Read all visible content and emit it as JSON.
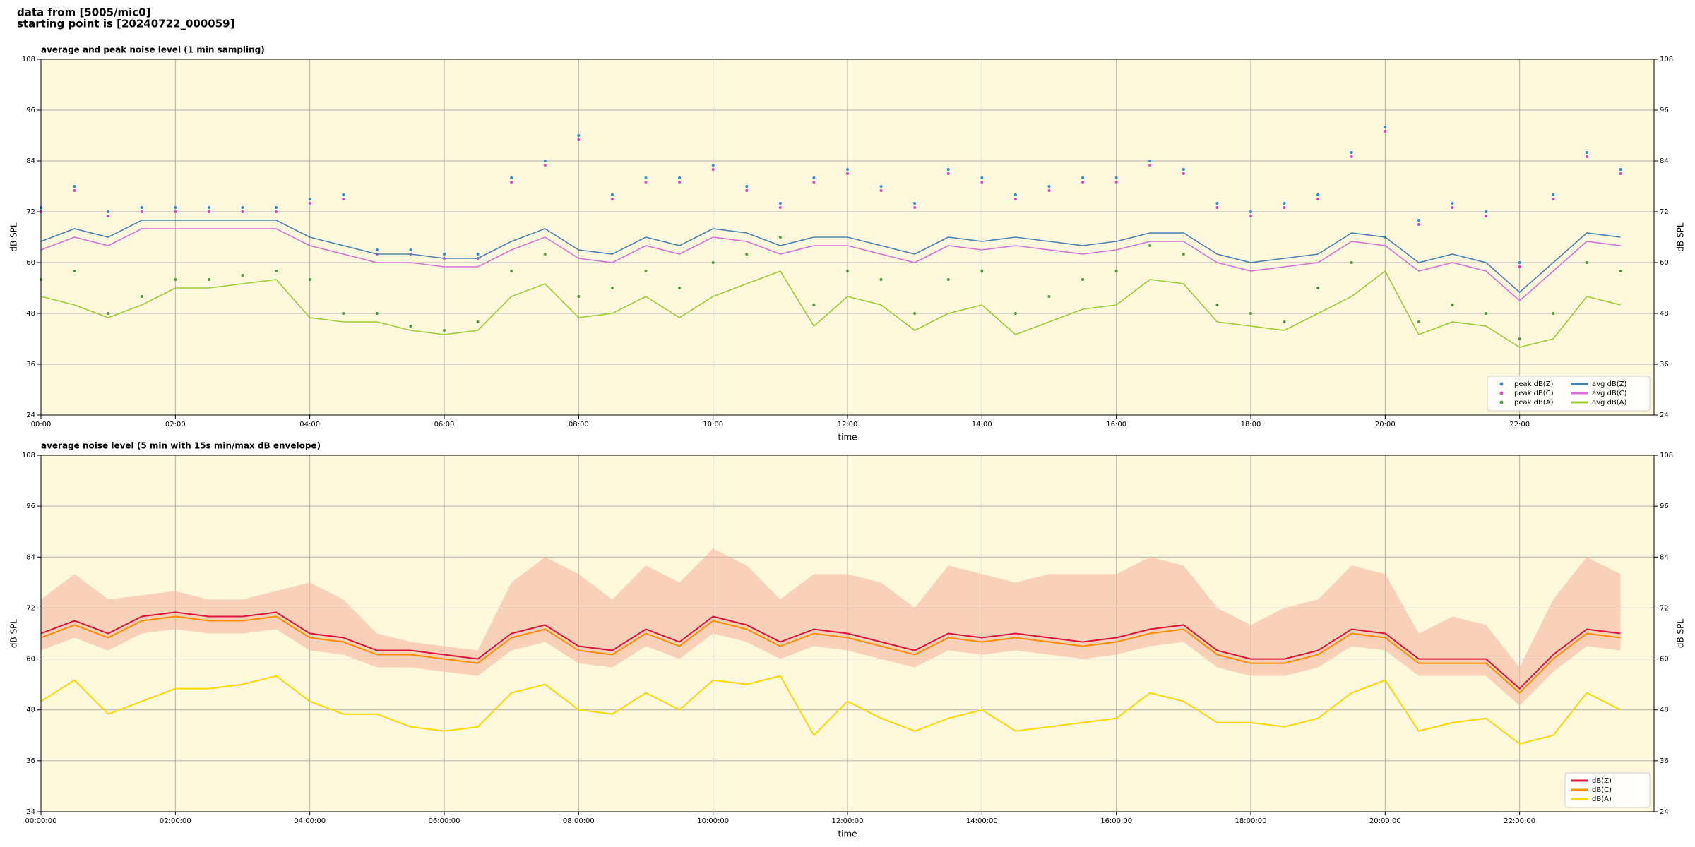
{
  "header": {
    "lines": [
      "data from [5005/mic0]",
      "starting point is [20240722_000059]"
    ]
  },
  "chart_data": [
    {
      "type": "line",
      "title": "average and peak noise level (1 min sampling)",
      "xlabel": "time",
      "ylabel": "dB SPL",
      "x": [
        0,
        0.5,
        1,
        1.5,
        2,
        2.5,
        3,
        3.5,
        4,
        4.5,
        5,
        5.5,
        6,
        6.5,
        7,
        7.5,
        8,
        8.5,
        9,
        9.5,
        10,
        10.5,
        11,
        11.5,
        12,
        12.5,
        13,
        13.5,
        14,
        14.5,
        15,
        15.5,
        16,
        16.5,
        17,
        17.5,
        18,
        18.5,
        19,
        19.5,
        20,
        20.5,
        21,
        21.5,
        22,
        22.5,
        23,
        23.5
      ],
      "xlim": [
        0,
        24
      ],
      "xticks": [
        {
          "value": 0,
          "label": "00:00"
        },
        {
          "value": 2,
          "label": "02:00"
        },
        {
          "value": 4,
          "label": "04:00"
        },
        {
          "value": 6,
          "label": "06:00"
        },
        {
          "value": 8,
          "label": "08:00"
        },
        {
          "value": 10,
          "label": "10:00"
        },
        {
          "value": 12,
          "label": "12:00"
        },
        {
          "value": 14,
          "label": "14:00"
        },
        {
          "value": 16,
          "label": "16:00"
        },
        {
          "value": 18,
          "label": "18:00"
        },
        {
          "value": 20,
          "label": "20:00"
        },
        {
          "value": 22,
          "label": "22:00"
        }
      ],
      "ylim": [
        24,
        108
      ],
      "yticks": [
        24,
        36,
        48,
        60,
        72,
        84,
        96,
        108
      ],
      "grid": true,
      "legend": "lower right",
      "series": [
        {
          "name": "peak dB(Z)",
          "style": "dots",
          "color": "#2e8bd8",
          "values": [
            73,
            78,
            72,
            73,
            73,
            73,
            73,
            73,
            75,
            76,
            63,
            63,
            62,
            62,
            80,
            84,
            90,
            76,
            80,
            80,
            83,
            78,
            74,
            80,
            82,
            78,
            74,
            82,
            80,
            76,
            78,
            80,
            80,
            84,
            82,
            74,
            72,
            74,
            76,
            86,
            92,
            70,
            74,
            72,
            60,
            76,
            86,
            82
          ]
        },
        {
          "name": "peak dB(C)",
          "style": "dots",
          "color": "#e040d0",
          "values": [
            72,
            77,
            71,
            72,
            72,
            72,
            72,
            72,
            74,
            75,
            62,
            62,
            61,
            61,
            79,
            83,
            89,
            75,
            79,
            79,
            82,
            77,
            73,
            79,
            81,
            77,
            73,
            81,
            79,
            75,
            77,
            79,
            79,
            83,
            81,
            73,
            71,
            73,
            75,
            85,
            91,
            69,
            73,
            71,
            59,
            75,
            85,
            81
          ]
        },
        {
          "name": "peak dB(A)",
          "style": "dots",
          "color": "#4c9a3a",
          "values": [
            56,
            58,
            48,
            52,
            56,
            56,
            57,
            58,
            56,
            48,
            48,
            45,
            44,
            46,
            58,
            62,
            52,
            54,
            58,
            54,
            60,
            62,
            66,
            50,
            58,
            56,
            48,
            56,
            58,
            48,
            52,
            56,
            58,
            64,
            62,
            50,
            48,
            46,
            54,
            60,
            66,
            46,
            50,
            48,
            42,
            48,
            60,
            58
          ]
        },
        {
          "name": "avg dB(Z)",
          "style": "line",
          "color": "#4682b4",
          "values": [
            65,
            68,
            66,
            70,
            70,
            70,
            70,
            70,
            66,
            64,
            62,
            62,
            61,
            61,
            65,
            68,
            63,
            62,
            66,
            64,
            68,
            67,
            64,
            66,
            66,
            64,
            62,
            66,
            65,
            66,
            65,
            64,
            65,
            67,
            67,
            62,
            60,
            61,
            62,
            67,
            66,
            60,
            62,
            60,
            53,
            60,
            67,
            66
          ]
        },
        {
          "name": "avg dB(C)",
          "style": "line",
          "color": "#da70d6",
          "values": [
            63,
            66,
            64,
            68,
            68,
            68,
            68,
            68,
            64,
            62,
            60,
            60,
            59,
            59,
            63,
            66,
            61,
            60,
            64,
            62,
            66,
            65,
            62,
            64,
            64,
            62,
            60,
            64,
            63,
            64,
            63,
            62,
            63,
            65,
            65,
            60,
            58,
            59,
            60,
            65,
            64,
            58,
            60,
            58,
            51,
            58,
            65,
            64
          ]
        },
        {
          "name": "avg dB(A)",
          "style": "line",
          "color": "#9acd32",
          "values": [
            52,
            50,
            47,
            50,
            54,
            54,
            55,
            56,
            47,
            46,
            46,
            44,
            43,
            44,
            52,
            55,
            47,
            48,
            52,
            47,
            52,
            55,
            58,
            45,
            52,
            50,
            44,
            48,
            50,
            43,
            46,
            49,
            50,
            56,
            55,
            46,
            45,
            44,
            48,
            52,
            58,
            43,
            46,
            45,
            40,
            42,
            52,
            50
          ]
        }
      ]
    },
    {
      "type": "line",
      "title": "average noise level (5 min with 15s min/max dB envelope)",
      "xlabel": "time",
      "ylabel": "dB SPL",
      "x": [
        0,
        0.5,
        1,
        1.5,
        2,
        2.5,
        3,
        3.5,
        4,
        4.5,
        5,
        5.5,
        6,
        6.5,
        7,
        7.5,
        8,
        8.5,
        9,
        9.5,
        10,
        10.5,
        11,
        11.5,
        12,
        12.5,
        13,
        13.5,
        14,
        14.5,
        15,
        15.5,
        16,
        16.5,
        17,
        17.5,
        18,
        18.5,
        19,
        19.5,
        20,
        20.5,
        21,
        21.5,
        22,
        22.5,
        23,
        23.5
      ],
      "xlim": [
        0,
        24
      ],
      "xticks": [
        {
          "value": 0,
          "label": "00:00:00"
        },
        {
          "value": 2,
          "label": "02:00:00"
        },
        {
          "value": 4,
          "label": "04:00:00"
        },
        {
          "value": 6,
          "label": "06:00:00"
        },
        {
          "value": 8,
          "label": "08:00:00"
        },
        {
          "value": 10,
          "label": "10:00:00"
        },
        {
          "value": 12,
          "label": "12:00:00"
        },
        {
          "value": 14,
          "label": "14:00:00"
        },
        {
          "value": 16,
          "label": "16:00:00"
        },
        {
          "value": 18,
          "label": "18:00:00"
        },
        {
          "value": 20,
          "label": "20:00:00"
        },
        {
          "value": 22,
          "label": "22:00:00"
        }
      ],
      "ylim": [
        24,
        108
      ],
      "yticks": [
        24,
        36,
        48,
        60,
        72,
        84,
        96,
        108
      ],
      "grid": true,
      "legend": "lower right",
      "envelope": {
        "color": "#f4b8a0",
        "lower": [
          62,
          65,
          62,
          66,
          67,
          66,
          66,
          67,
          62,
          61,
          58,
          58,
          57,
          56,
          62,
          64,
          59,
          58,
          63,
          60,
          66,
          64,
          60,
          63,
          62,
          60,
          58,
          62,
          61,
          62,
          61,
          60,
          61,
          63,
          64,
          58,
          56,
          56,
          58,
          63,
          62,
          56,
          56,
          56,
          49,
          57,
          63,
          62
        ],
        "upper": [
          74,
          80,
          74,
          75,
          76,
          74,
          74,
          76,
          78,
          74,
          66,
          64,
          63,
          62,
          78,
          84,
          80,
          74,
          82,
          78,
          86,
          82,
          74,
          80,
          80,
          78,
          72,
          82,
          80,
          78,
          80,
          80,
          80,
          84,
          82,
          72,
          68,
          72,
          74,
          82,
          80,
          66,
          70,
          68,
          58,
          74,
          84,
          80
        ]
      },
      "series": [
        {
          "name": "dB(Z)",
          "style": "line",
          "color": "#dc143c",
          "values": [
            66,
            69,
            66,
            70,
            71,
            70,
            70,
            71,
            66,
            65,
            62,
            62,
            61,
            60,
            66,
            68,
            63,
            62,
            67,
            64,
            70,
            68,
            64,
            67,
            66,
            64,
            62,
            66,
            65,
            66,
            65,
            64,
            65,
            67,
            68,
            62,
            60,
            60,
            62,
            67,
            66,
            60,
            60,
            60,
            53,
            61,
            67,
            66
          ]
        },
        {
          "name": "dB(C)",
          "style": "line",
          "color": "#ff8c00",
          "values": [
            65,
            68,
            65,
            69,
            70,
            69,
            69,
            70,
            65,
            64,
            61,
            61,
            60,
            59,
            65,
            67,
            62,
            61,
            66,
            63,
            69,
            67,
            63,
            66,
            65,
            63,
            61,
            65,
            64,
            65,
            64,
            63,
            64,
            66,
            67,
            61,
            59,
            59,
            61,
            66,
            65,
            59,
            59,
            59,
            52,
            60,
            66,
            65
          ]
        },
        {
          "name": "dB(A)",
          "style": "line",
          "color": "#ffd700",
          "values": [
            50,
            55,
            47,
            50,
            53,
            53,
            54,
            56,
            50,
            47,
            47,
            44,
            43,
            44,
            52,
            54,
            48,
            47,
            52,
            48,
            55,
            54,
            56,
            42,
            50,
            46,
            43,
            46,
            48,
            43,
            44,
            45,
            46,
            52,
            50,
            45,
            45,
            44,
            46,
            52,
            55,
            43,
            45,
            46,
            40,
            42,
            52,
            48
          ]
        }
      ]
    }
  ]
}
